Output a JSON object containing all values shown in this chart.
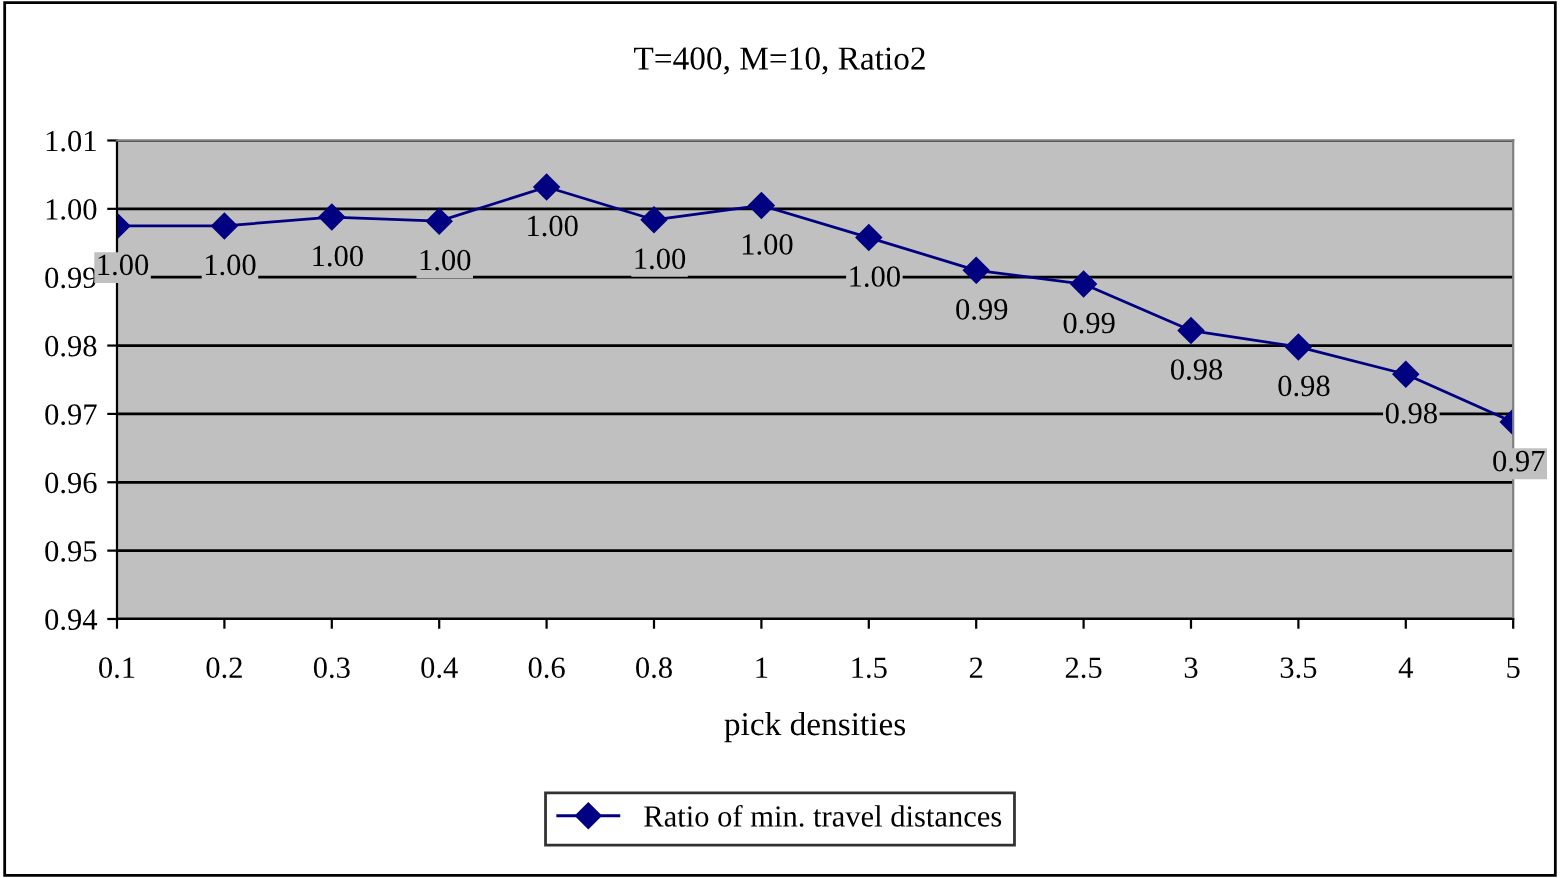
{
  "chart_data": {
    "type": "line",
    "title": "T=400, M=10, Ratio2",
    "xlabel": "pick densities",
    "categories": [
      "0.1",
      "0.2",
      "0.3",
      "0.4",
      "0.6",
      "0.8",
      "1",
      "1.5",
      "2",
      "2.5",
      "3",
      "3.5",
      "4",
      "5"
    ],
    "series": [
      {
        "name": "Ratio of min. travel distances",
        "color": "#000080",
        "values": [
          0.9975,
          0.9975,
          0.9988,
          0.9982,
          1.0032,
          0.9984,
          1.0005,
          0.9958,
          0.991,
          0.989,
          0.9822,
          0.9798,
          0.9758,
          0.9688
        ],
        "value_labels": [
          "1.00",
          "1.00",
          "1.00",
          "1.00",
          "1.00",
          "1.00",
          "1.00",
          "1.00",
          "0.99",
          "0.99",
          "0.98",
          "0.98",
          "0.98",
          "0.97"
        ]
      }
    ],
    "ylim": [
      0.94,
      1.01
    ],
    "yticks": [
      {
        "value": 0.94,
        "label": "0.94"
      },
      {
        "value": 0.95,
        "label": "0.95"
      },
      {
        "value": 0.96,
        "label": "0.96"
      },
      {
        "value": 0.97,
        "label": "0.97"
      },
      {
        "value": 0.98,
        "label": "0.98"
      },
      {
        "value": 0.99,
        "label": "0.99"
      },
      {
        "value": 1.0,
        "label": "1.00"
      },
      {
        "value": 1.01,
        "label": "1.01"
      }
    ],
    "grid": "y",
    "legend": "bottom",
    "marker": "diamond",
    "line_style": "solid"
  }
}
